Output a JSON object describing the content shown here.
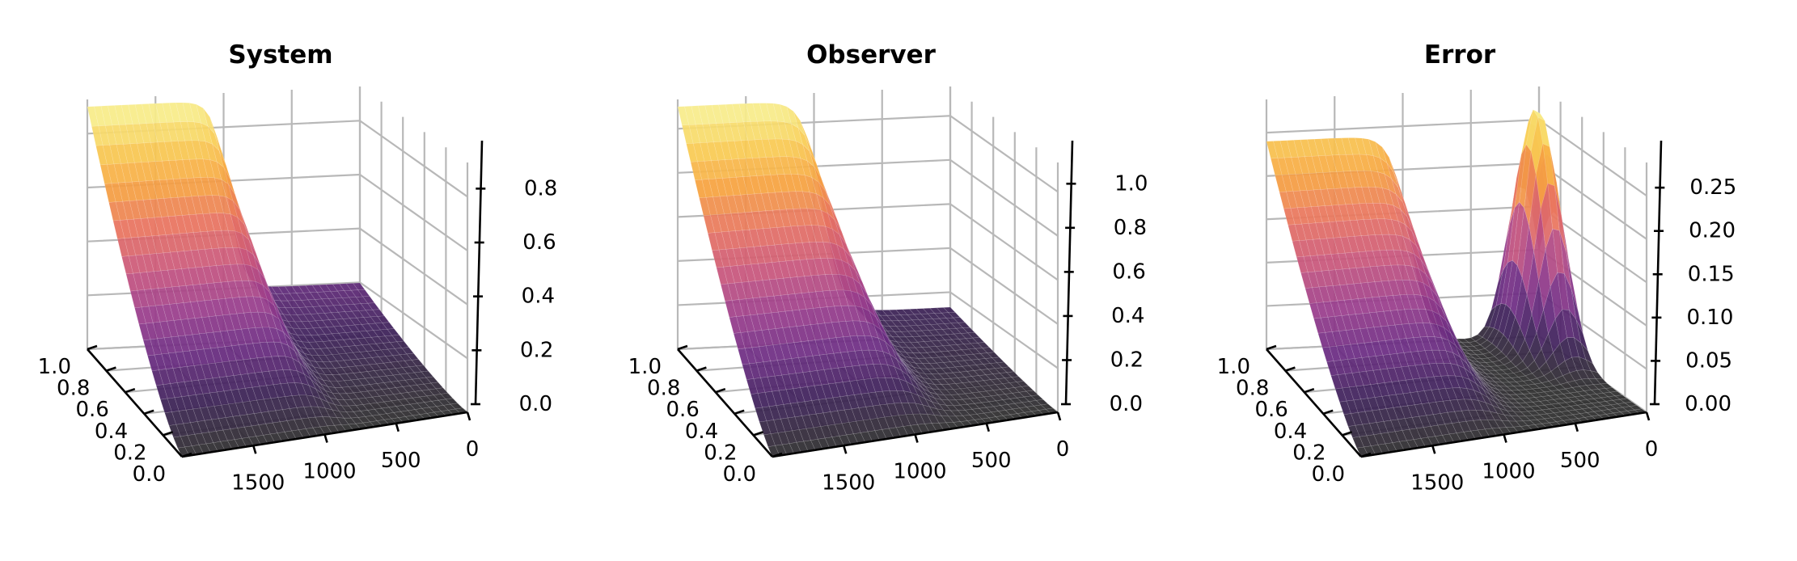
{
  "figure": {
    "colormap": "inferno",
    "colormap_stops": [
      "#2c2c2c",
      "#3b1f57",
      "#6b2b82",
      "#9b3d8c",
      "#c9567b",
      "#e8735f",
      "#f6a33f",
      "#f9cf56",
      "#f6f59a"
    ]
  },
  "chart_data": [
    {
      "type": "surface3d",
      "title": "System",
      "x_axis": {
        "ticks": [
          0,
          500,
          1000,
          1500
        ],
        "tick_labels": [
          "0",
          "500",
          "1000",
          "1500"
        ],
        "range": [
          0,
          2000
        ]
      },
      "y_axis": {
        "ticks": [
          0.0,
          0.2,
          0.4,
          0.6,
          0.8,
          1.0
        ],
        "tick_labels": [
          "0.0",
          "0.2",
          "0.4",
          "0.6",
          "0.8",
          "1.0"
        ],
        "range": [
          0,
          1
        ]
      },
      "z_axis": {
        "ticks": [
          0.0,
          0.2,
          0.4,
          0.6,
          0.8
        ],
        "tick_labels": [
          "0.0",
          "0.2",
          "0.4",
          "0.6",
          "0.8"
        ],
        "range": [
          0,
          0.9
        ]
      },
      "grid": true,
      "surface": {
        "base": "system",
        "z_max": 0.9
      }
    },
    {
      "type": "surface3d",
      "title": "Observer",
      "x_axis": {
        "ticks": [
          0,
          500,
          1000,
          1500
        ],
        "tick_labels": [
          "0",
          "500",
          "1000",
          "1500"
        ],
        "range": [
          0,
          2000
        ]
      },
      "y_axis": {
        "ticks": [
          0.0,
          0.2,
          0.4,
          0.6,
          0.8,
          1.0
        ],
        "tick_labels": [
          "0.0",
          "0.2",
          "0.4",
          "0.6",
          "0.8",
          "1.0"
        ],
        "range": [
          0,
          1
        ]
      },
      "z_axis": {
        "ticks": [
          0.0,
          0.2,
          0.4,
          0.6,
          0.8,
          1.0
        ],
        "tick_labels": [
          "0.0",
          "0.2",
          "0.4",
          "0.6",
          "0.8",
          "1.0"
        ],
        "range": [
          0,
          1.1
        ]
      },
      "grid": true,
      "surface": {
        "base": "observer",
        "z_max": 1.1
      }
    },
    {
      "type": "surface3d",
      "title": "Error",
      "x_axis": {
        "ticks": [
          0,
          500,
          1000,
          1500
        ],
        "tick_labels": [
          "0",
          "500",
          "1000",
          "1500"
        ],
        "range": [
          0,
          2000
        ]
      },
      "y_axis": {
        "ticks": [
          0.0,
          0.2,
          0.4,
          0.6,
          0.8,
          1.0
        ],
        "tick_labels": [
          "0.0",
          "0.2",
          "0.4",
          "0.6",
          "0.8",
          "1.0"
        ],
        "range": [
          0,
          1
        ]
      },
      "z_axis": {
        "ticks": [
          0.0,
          0.05,
          0.1,
          0.15,
          0.2,
          0.25
        ],
        "tick_labels": [
          "0.00",
          "0.05",
          "0.10",
          "0.15",
          "0.20",
          "0.25"
        ],
        "range": [
          0,
          0.28
        ]
      },
      "grid": true,
      "surface": {
        "base": "error",
        "z_max": 0.28
      }
    }
  ]
}
